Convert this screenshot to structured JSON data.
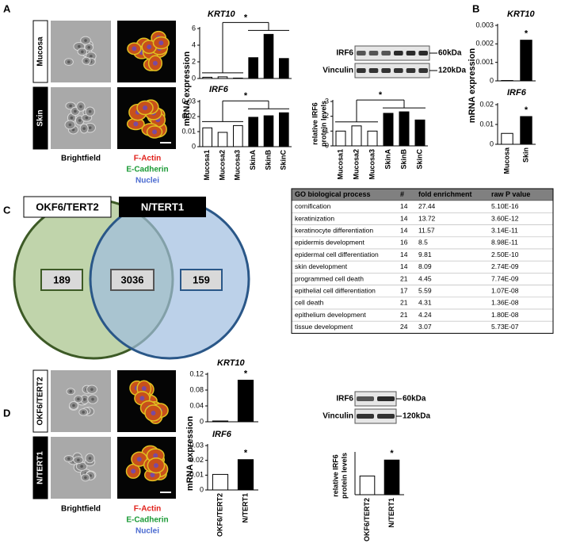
{
  "panels": [
    "A",
    "B",
    "C",
    "D"
  ],
  "panel_a": {
    "row_labels": [
      "Mucosa",
      "Skin"
    ],
    "image_label": "Brightfield",
    "stain_labels": [
      "F-Actin",
      "E-Cadherin",
      "Nuclei"
    ],
    "blot_labels": [
      "IRF6",
      "Vinculin"
    ],
    "blot_sizes": [
      "60kDa",
      "120kDa"
    ]
  },
  "panel_d": {
    "row_labels": [
      "OKF6/TERT2",
      "N/TERT1"
    ],
    "image_label": "Brightfield",
    "stain_labels": [
      "F-Actin",
      "E-Cadherin",
      "Nuclei"
    ],
    "blot_labels": [
      "IRF6",
      "Vinculin"
    ],
    "blot_sizes": [
      "60kDa",
      "120kDa"
    ]
  },
  "venn": {
    "sets": [
      "OKF6/TERT2",
      "N/TERT1"
    ],
    "counts": [
      189,
      3036,
      159
    ]
  },
  "table": {
    "header": [
      "GO biological process",
      "#",
      "fold enrichment",
      "raw P value"
    ],
    "rows": [
      [
        "cornification",
        14,
        27.44,
        "5.10E-16"
      ],
      [
        "keratinization",
        14,
        13.72,
        "3.60E-12"
      ],
      [
        "keratinocyte differentiation",
        14,
        11.57,
        "3.14E-11"
      ],
      [
        "epidermis development",
        16,
        8.5,
        "8.98E-11"
      ],
      [
        "epidermal cell differentiation",
        14,
        9.81,
        "2.50E-10"
      ],
      [
        "skin development",
        14,
        8.09,
        "2.74E-09"
      ],
      [
        "programmed cell death",
        21,
        4.45,
        "7.74E-09"
      ],
      [
        "epithelial cell differentiation",
        17,
        5.59,
        "1.07E-08"
      ],
      [
        "cell death",
        21,
        4.31,
        "1.36E-08"
      ],
      [
        "epithelium development",
        21,
        4.24,
        "1.80E-08"
      ],
      [
        "tissue development",
        24,
        3.07,
        "5.73E-07"
      ]
    ]
  },
  "chart_data": [
    {
      "type": "bar",
      "title": "KRT10",
      "ylabel": "mRNA expression",
      "values": [
        0.15,
        0.2,
        0.05,
        2.5,
        5.3,
        2.4
      ],
      "colors": [
        "#ffffff",
        "#ffffff",
        "#ffffff",
        "#000000",
        "#000000",
        "#000000"
      ],
      "ylim": [
        0,
        6
      ],
      "yticks": [
        0,
        2,
        4,
        6
      ],
      "annotation": "*"
    },
    {
      "type": "bar",
      "title": "IRF6",
      "categories": [
        "Mucosa1",
        "Mucosa2",
        "Mucosa3",
        "SkinA",
        "SkinB",
        "SkinC"
      ],
      "values": [
        0.0125,
        0.0095,
        0.014,
        0.0195,
        0.0205,
        0.0225
      ],
      "colors": [
        "#ffffff",
        "#ffffff",
        "#ffffff",
        "#000000",
        "#000000",
        "#000000"
      ],
      "ylim": [
        0,
        0.03
      ],
      "yticks": [
        0,
        0.01,
        0.02,
        0.03
      ],
      "annotation": "*"
    },
    {
      "type": "bar",
      "ylabel": [
        "relative IRF6",
        "protein levels"
      ],
      "categories": [
        "Mucosa1",
        "Mucosa2",
        "Mucosa3",
        "SkinA",
        "SkinB",
        "SkinC"
      ],
      "values": [
        1.0,
        1.35,
        1.0,
        2.2,
        2.3,
        1.75
      ],
      "colors": [
        "#ffffff",
        "#ffffff",
        "#ffffff",
        "#000000",
        "#000000",
        "#000000"
      ],
      "ylim": [
        0,
        3
      ],
      "yticks": [
        0,
        1,
        2,
        3
      ],
      "annotation": "*"
    },
    {
      "type": "bar",
      "title": "KRT10",
      "ylabel": "mRNA expression",
      "values": [
        2e-05,
        0.0022
      ],
      "colors": [
        "#ffffff",
        "#000000"
      ],
      "ylim": [
        0,
        0.003
      ],
      "yticks": [
        0,
        0.001,
        0.002,
        0.003
      ],
      "annotation": "*"
    },
    {
      "type": "bar",
      "title": "IRF6",
      "categories": [
        "Mucosa",
        "Skin"
      ],
      "values": [
        0.0055,
        0.014
      ],
      "colors": [
        "#ffffff",
        "#000000"
      ],
      "ylim": [
        0,
        0.02
      ],
      "yticks": [
        0,
        0.01,
        0.02
      ],
      "annotation": "*"
    },
    {
      "type": "bar",
      "title": "KRT10",
      "ylabel": "mRNA expression",
      "values": [
        0.002,
        0.105
      ],
      "colors": [
        "#ffffff",
        "#000000"
      ],
      "ylim": [
        0,
        0.12
      ],
      "yticks": [
        0,
        0.04,
        0.08,
        0.12
      ],
      "annotation": "*"
    },
    {
      "type": "bar",
      "title": "IRF6",
      "categories": [
        "OKF6/TERT2",
        "N/TERT1"
      ],
      "values": [
        0.0105,
        0.0205
      ],
      "colors": [
        "#ffffff",
        "#000000"
      ],
      "ylim": [
        0,
        0.03
      ],
      "yticks": [
        0,
        0.01,
        0.02,
        0.03
      ],
      "annotation": "*"
    },
    {
      "type": "bar",
      "ylabel": [
        "relative IRF6",
        "protein levels"
      ],
      "categories": [
        "OKF6/TERT2",
        "N/TERT1"
      ],
      "values": [
        1.0,
        1.85
      ],
      "colors": [
        "#ffffff",
        "#000000"
      ],
      "ylim": [
        0,
        2.2
      ],
      "annotation": "*"
    }
  ]
}
